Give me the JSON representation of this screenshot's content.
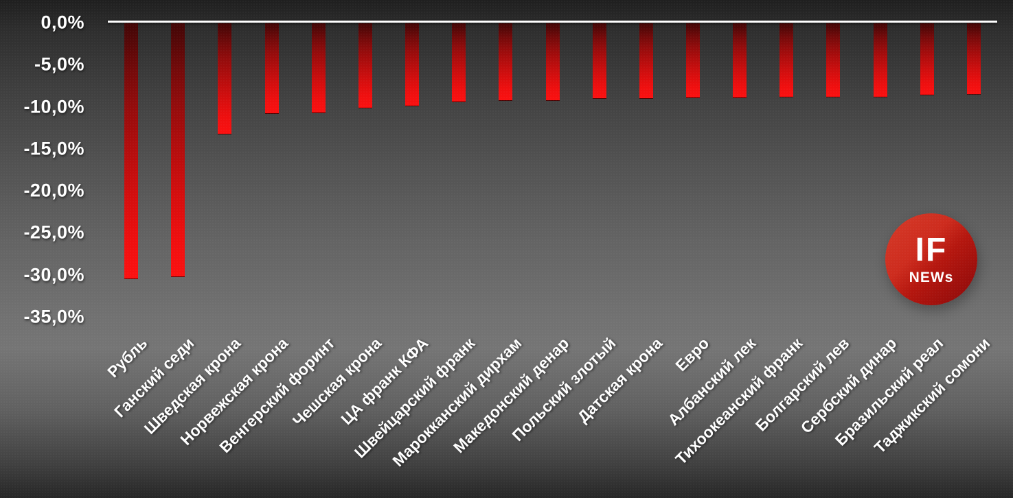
{
  "chart_data": {
    "type": "bar",
    "title": "",
    "xlabel": "",
    "ylabel": "",
    "categories": [
      "Рубль",
      "Ганский седи",
      "Шведская крона",
      "Норвежская крона",
      "Венгерский форинт",
      "Чешская крона",
      "ЦА франк КФА",
      "Швейцарский франк",
      "Марокканский дирхам",
      "Македонский денар",
      "Польский злотый",
      "Датская крона",
      "Евро",
      "Албанский лек",
      "Тихоокеанский франк",
      "Болгарский лев",
      "Сербский динар",
      "Бразильский реал",
      "Таджикский сомони"
    ],
    "values": [
      -30.4,
      -30.2,
      -13.2,
      -10.8,
      -10.7,
      -10.1,
      -9.9,
      -9.4,
      -9.2,
      -9.2,
      -9.0,
      -9.0,
      -8.9,
      -8.9,
      -8.8,
      -8.8,
      -8.8,
      -8.6,
      -8.5
    ],
    "value_unit": "%",
    "ylim": [
      -35,
      0
    ],
    "ytick_labels": [
      "0,0%",
      "-5,0%",
      "-10,0%",
      "-15,0%",
      "-20,0%",
      "-25,0%",
      "-30,0%",
      "-35,0%"
    ],
    "grid": false,
    "legend": "none",
    "x_label_rotation_deg": 45
  },
  "colors": {
    "axis_line": "#ffffff",
    "bar_top": "#420606",
    "bar_bottom": "#fb1111",
    "label_text": "#ffffff",
    "logo_red": "#c01812"
  },
  "logo": {
    "line1": "IF",
    "line2": "NEWs"
  }
}
